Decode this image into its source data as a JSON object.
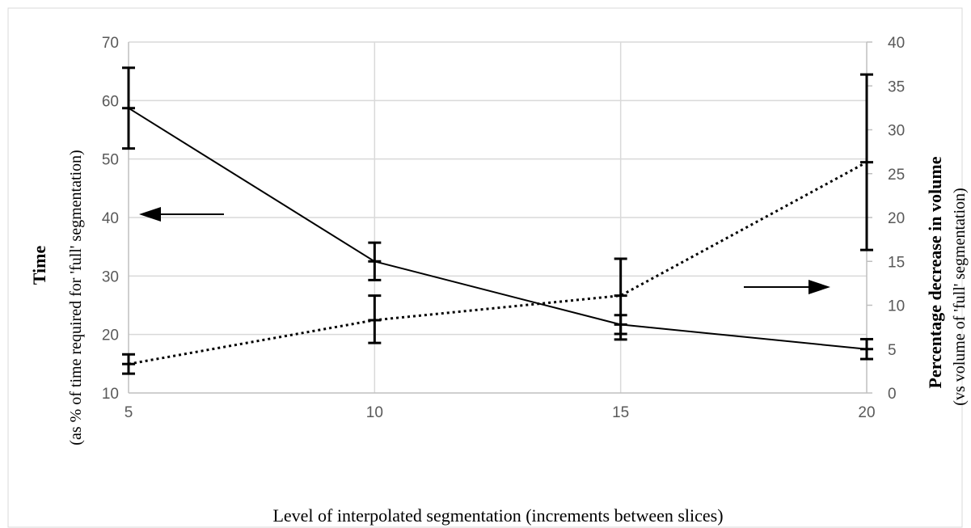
{
  "chart_data": {
    "type": "line",
    "x": [
      5,
      10,
      15,
      20
    ],
    "xlim": [
      5,
      20
    ],
    "xticks": [
      5,
      10,
      15,
      20
    ],
    "xlabel": "Level of interpolated segmentation (increments between slices)",
    "ylabel_left": {
      "title": "Time",
      "subtitle": "(as % of time required for 'full' segmentation)"
    },
    "ylabel_right": {
      "title": "Percentage decrease in volume",
      "subtitle": "(vs volume of 'full' segmentation)"
    },
    "ylim_left": [
      10,
      70
    ],
    "yticks_left": [
      10,
      20,
      30,
      40,
      50,
      60,
      70
    ],
    "ylim_right": [
      0,
      40
    ],
    "yticks_right": [
      0,
      5,
      10,
      15,
      20,
      25,
      30,
      35,
      40
    ],
    "grid": true,
    "legend": "none",
    "series": [
      {
        "axis": "left",
        "style": "solid",
        "values": [
          58.7,
          32.5,
          21.7,
          17.5
        ],
        "err_low": [
          51.8,
          29.3,
          20.1,
          15.8
        ],
        "err_high": [
          65.6,
          35.7,
          23.3,
          19.2
        ]
      },
      {
        "axis": "right",
        "style": "dotted",
        "values": [
          3.3,
          8.3,
          11.1,
          26.3
        ],
        "err_low": [
          2.2,
          5.7,
          6.1,
          16.3
        ],
        "err_high": [
          4.4,
          11.1,
          15.3,
          36.3
        ]
      }
    ],
    "annotations": [
      {
        "type": "arrow",
        "points_to": "left",
        "series_index": 0
      },
      {
        "type": "arrow",
        "points_to": "right",
        "series_index": 1
      }
    ],
    "colors": {
      "series": "#000000",
      "grid": "#d9d9d9",
      "tick_text": "#595959"
    }
  }
}
